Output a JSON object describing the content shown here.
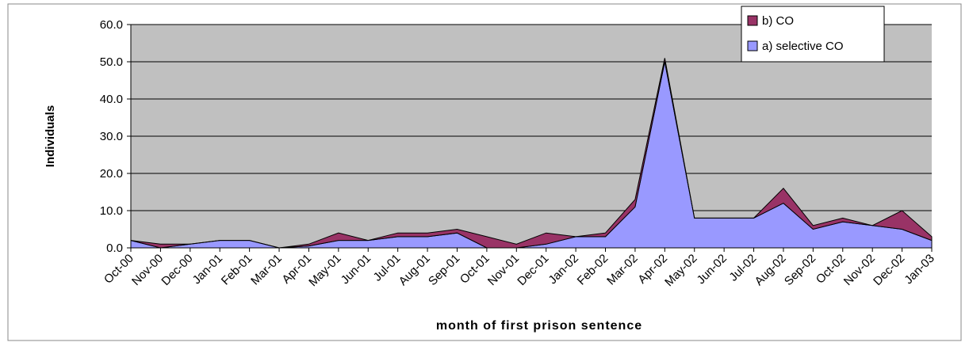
{
  "chart_data": {
    "type": "stacked-area",
    "x_label": "month of first prison sentence",
    "y_label": "Individuals",
    "categories": [
      "Oct-00",
      "Nov-00",
      "Dec-00",
      "Jan-01",
      "Feb-01",
      "Mar-01",
      "Apr-01",
      "May-01",
      "Jun-01",
      "Jul-01",
      "Aug-01",
      "Sep-01",
      "Oct-01",
      "Nov-01",
      "Dec-01",
      "Jan-02",
      "Feb-02",
      "Mar-02",
      "Apr-02",
      "May-02",
      "Jun-02",
      "Jul-02",
      "Aug-02",
      "Sep-02",
      "Oct-02",
      "Nov-02",
      "Dec-02",
      "Jan-03"
    ],
    "series": [
      {
        "name": "a) selective CO",
        "color": "#9999ff",
        "values": [
          2,
          0,
          1,
          2,
          2,
          0,
          0.5,
          2,
          2,
          3,
          3,
          4,
          0,
          0,
          1,
          3,
          3,
          11,
          50,
          8,
          8,
          8,
          12,
          5,
          7,
          6,
          5,
          2
        ]
      },
      {
        "name": "b) CO",
        "color": "#993366",
        "values": [
          0,
          1,
          0,
          0,
          0,
          0,
          0.5,
          2,
          0,
          1,
          1,
          1,
          3,
          1,
          3,
          0,
          1,
          2,
          1,
          0,
          0,
          0,
          4,
          1,
          1,
          0,
          5,
          1
        ]
      }
    ],
    "ylim": [
      0,
      60
    ],
    "yticks": [
      {
        "value": 0,
        "label": "0.0"
      },
      {
        "value": 10,
        "label": "10.0"
      },
      {
        "value": 20,
        "label": "20.0"
      },
      {
        "value": 30,
        "label": "30.0"
      },
      {
        "value": 40,
        "label": "40.0"
      },
      {
        "value": 50,
        "label": "50.0"
      },
      {
        "value": 60,
        "label": "60.0"
      }
    ],
    "grid": true,
    "plot_background": "#c0c0c0",
    "legend": "top-right"
  }
}
